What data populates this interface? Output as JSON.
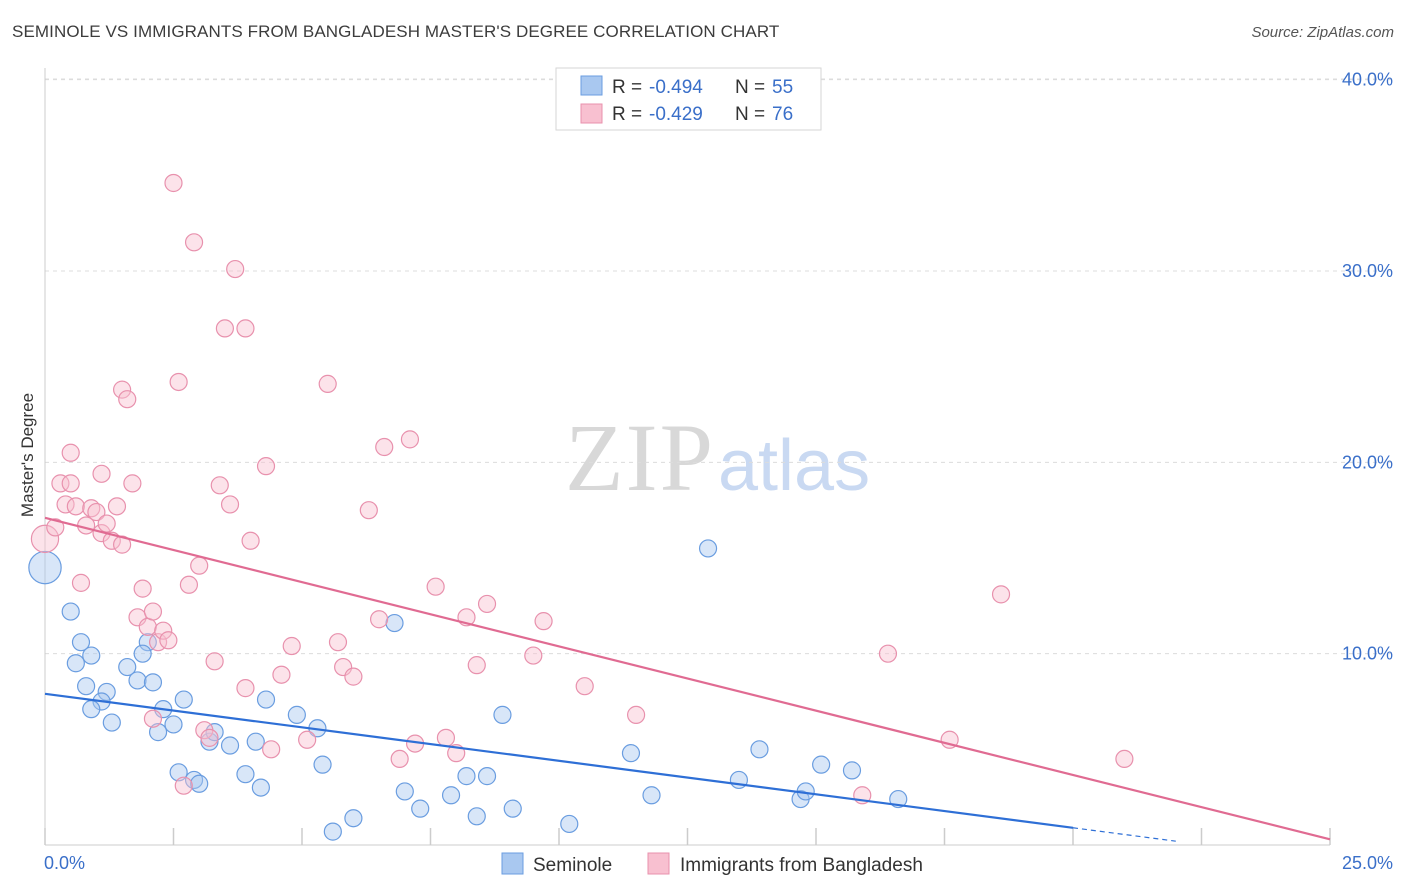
{
  "header": {
    "title": "SEMINOLE VS IMMIGRANTS FROM BANGLADESH MASTER'S DEGREE CORRELATION CHART",
    "source": "Source: ZipAtlas.com"
  },
  "watermark": {
    "zip": "ZIP",
    "atlas": "atlas"
  },
  "legend": {
    "r_label": "R =",
    "n_label": "N =",
    "entries": [
      {
        "r": "-0.494",
        "n": "55",
        "color": "#a9c8f0",
        "stroke": "#6a9de0"
      },
      {
        "r": "-0.429",
        "n": "76",
        "color": "#f8c0d0",
        "stroke": "#e891ad"
      }
    ]
  },
  "chart_data": {
    "type": "scatter",
    "title": "SEMINOLE VS IMMIGRANTS FROM BANGLADESH MASTER'S DEGREE CORRELATION CHART",
    "xlabel": "",
    "ylabel": "Master's Degree",
    "xlim": [
      0,
      25
    ],
    "ylim": [
      0,
      40
    ],
    "x_tick_labels": [
      "0.0%",
      "25.0%"
    ],
    "y_ticks": [
      10,
      20,
      30,
      40
    ],
    "y_tick_labels": [
      "10.0%",
      "20.0%",
      "30.0%",
      "40.0%"
    ],
    "grid": true,
    "series": [
      {
        "name": "Seminole",
        "color": "#a9c8f0",
        "stroke": "#6a9de0",
        "line_color": "#2e6fd6",
        "trend": {
          "x0": 0,
          "y0": 7.9,
          "x1": 20,
          "y1": 0.9,
          "dash_x_end": 22,
          "dash_y_end": 0.2
        },
        "points": [
          [
            0.0,
            14.5,
            1.9
          ],
          [
            0.5,
            12.2,
            1
          ],
          [
            0.9,
            9.9,
            1
          ],
          [
            0.7,
            10.6,
            1
          ],
          [
            0.6,
            9.5,
            1
          ],
          [
            0.8,
            8.3,
            1
          ],
          [
            1.2,
            8.0,
            1
          ],
          [
            1.1,
            7.5,
            1
          ],
          [
            0.9,
            7.1,
            1
          ],
          [
            1.3,
            6.4,
            1
          ],
          [
            1.6,
            9.3,
            1
          ],
          [
            1.8,
            8.6,
            1
          ],
          [
            2.0,
            10.6,
            1
          ],
          [
            1.9,
            10.0,
            1
          ],
          [
            2.1,
            8.5,
            1
          ],
          [
            2.3,
            7.1,
            1
          ],
          [
            2.2,
            5.9,
            1
          ],
          [
            2.5,
            6.3,
            1
          ],
          [
            2.7,
            7.6,
            1
          ],
          [
            2.6,
            3.8,
            1
          ],
          [
            2.9,
            3.4,
            1
          ],
          [
            3.0,
            3.2,
            1
          ],
          [
            3.2,
            5.4,
            1
          ],
          [
            3.3,
            5.9,
            1
          ],
          [
            3.6,
            5.2,
            1
          ],
          [
            3.9,
            3.7,
            1
          ],
          [
            4.1,
            5.4,
            1
          ],
          [
            4.3,
            7.6,
            1
          ],
          [
            4.2,
            3.0,
            1
          ],
          [
            4.9,
            6.8,
            1
          ],
          [
            5.3,
            6.1,
            1
          ],
          [
            5.4,
            4.2,
            1
          ],
          [
            5.6,
            0.7,
            1
          ],
          [
            6.0,
            1.4,
            1
          ],
          [
            6.8,
            11.6,
            1
          ],
          [
            7.0,
            2.8,
            1
          ],
          [
            7.3,
            1.9,
            1
          ],
          [
            7.9,
            2.6,
            1
          ],
          [
            8.2,
            3.6,
            1
          ],
          [
            8.4,
            1.5,
            1
          ],
          [
            8.6,
            3.6,
            1
          ],
          [
            8.9,
            6.8,
            1
          ],
          [
            9.1,
            1.9,
            1
          ],
          [
            10.2,
            1.1,
            1
          ],
          [
            11.4,
            4.8,
            1
          ],
          [
            11.8,
            2.6,
            1
          ],
          [
            12.9,
            15.5,
            1
          ],
          [
            13.5,
            3.4,
            1
          ],
          [
            13.9,
            5.0,
            1
          ],
          [
            14.7,
            2.4,
            1
          ],
          [
            14.8,
            2.8,
            1
          ],
          [
            15.1,
            4.2,
            1
          ],
          [
            15.7,
            3.9,
            1
          ],
          [
            16.6,
            2.4,
            1
          ]
        ]
      },
      {
        "name": "Immigrants from Bangladesh",
        "color": "#f8c0d0",
        "stroke": "#e891ad",
        "line_color": "#e06b92",
        "trend": {
          "x0": 0,
          "y0": 17.1,
          "x1": 25,
          "y1": 0.3
        },
        "points": [
          [
            0.0,
            16.0,
            1.6
          ],
          [
            0.2,
            16.6,
            1
          ],
          [
            0.3,
            18.9,
            1
          ],
          [
            0.4,
            17.8,
            1
          ],
          [
            0.5,
            20.5,
            1
          ],
          [
            0.5,
            18.9,
            1
          ],
          [
            0.6,
            17.7,
            1
          ],
          [
            0.7,
            13.7,
            1
          ],
          [
            0.8,
            16.7,
            1
          ],
          [
            0.9,
            17.6,
            1
          ],
          [
            1.0,
            17.4,
            1
          ],
          [
            1.1,
            16.3,
            1
          ],
          [
            1.1,
            19.4,
            1
          ],
          [
            1.2,
            16.8,
            1
          ],
          [
            1.3,
            15.9,
            1
          ],
          [
            1.4,
            17.7,
            1
          ],
          [
            1.5,
            15.7,
            1
          ],
          [
            1.5,
            23.8,
            1
          ],
          [
            1.6,
            23.3,
            1
          ],
          [
            1.7,
            18.9,
            1
          ],
          [
            1.8,
            11.9,
            1
          ],
          [
            1.9,
            13.4,
            1
          ],
          [
            2.0,
            11.4,
            1
          ],
          [
            2.1,
            12.2,
            1
          ],
          [
            2.1,
            6.6,
            1
          ],
          [
            2.2,
            10.6,
            1
          ],
          [
            2.3,
            11.2,
            1
          ],
          [
            2.4,
            10.7,
            1
          ],
          [
            2.5,
            34.6,
            1
          ],
          [
            2.6,
            24.2,
            1
          ],
          [
            2.7,
            3.1,
            1
          ],
          [
            2.8,
            13.6,
            1
          ],
          [
            2.9,
            31.5,
            1
          ],
          [
            3.0,
            14.6,
            1
          ],
          [
            3.1,
            6.0,
            1
          ],
          [
            3.2,
            5.6,
            1
          ],
          [
            3.3,
            9.6,
            1
          ],
          [
            3.4,
            18.8,
            1
          ],
          [
            3.5,
            27.0,
            1
          ],
          [
            3.6,
            17.8,
            1
          ],
          [
            3.7,
            30.1,
            1
          ],
          [
            3.9,
            27.0,
            1
          ],
          [
            3.9,
            8.2,
            1
          ],
          [
            4.0,
            15.9,
            1
          ],
          [
            4.3,
            19.8,
            1
          ],
          [
            4.4,
            5.0,
            1
          ],
          [
            4.6,
            8.9,
            1
          ],
          [
            4.8,
            10.4,
            1
          ],
          [
            5.1,
            5.5,
            1
          ],
          [
            5.5,
            24.1,
            1
          ],
          [
            5.7,
            10.6,
            1
          ],
          [
            5.8,
            9.3,
            1
          ],
          [
            6.0,
            8.8,
            1
          ],
          [
            6.3,
            17.5,
            1
          ],
          [
            6.5,
            11.8,
            1
          ],
          [
            6.6,
            20.8,
            1
          ],
          [
            6.9,
            4.5,
            1
          ],
          [
            7.1,
            21.2,
            1
          ],
          [
            7.2,
            5.3,
            1
          ],
          [
            7.6,
            13.5,
            1
          ],
          [
            7.8,
            5.6,
            1
          ],
          [
            8.0,
            4.8,
            1
          ],
          [
            8.2,
            11.9,
            1
          ],
          [
            8.4,
            9.4,
            1
          ],
          [
            8.6,
            12.6,
            1
          ],
          [
            9.5,
            9.9,
            1
          ],
          [
            9.7,
            11.7,
            1
          ],
          [
            10.5,
            8.3,
            1
          ],
          [
            11.5,
            6.8,
            1
          ],
          [
            15.9,
            2.6,
            1
          ],
          [
            16.4,
            10.0,
            1
          ],
          [
            17.6,
            5.5,
            1
          ],
          [
            18.6,
            13.1,
            1
          ],
          [
            21.0,
            4.5,
            1
          ]
        ]
      }
    ]
  }
}
